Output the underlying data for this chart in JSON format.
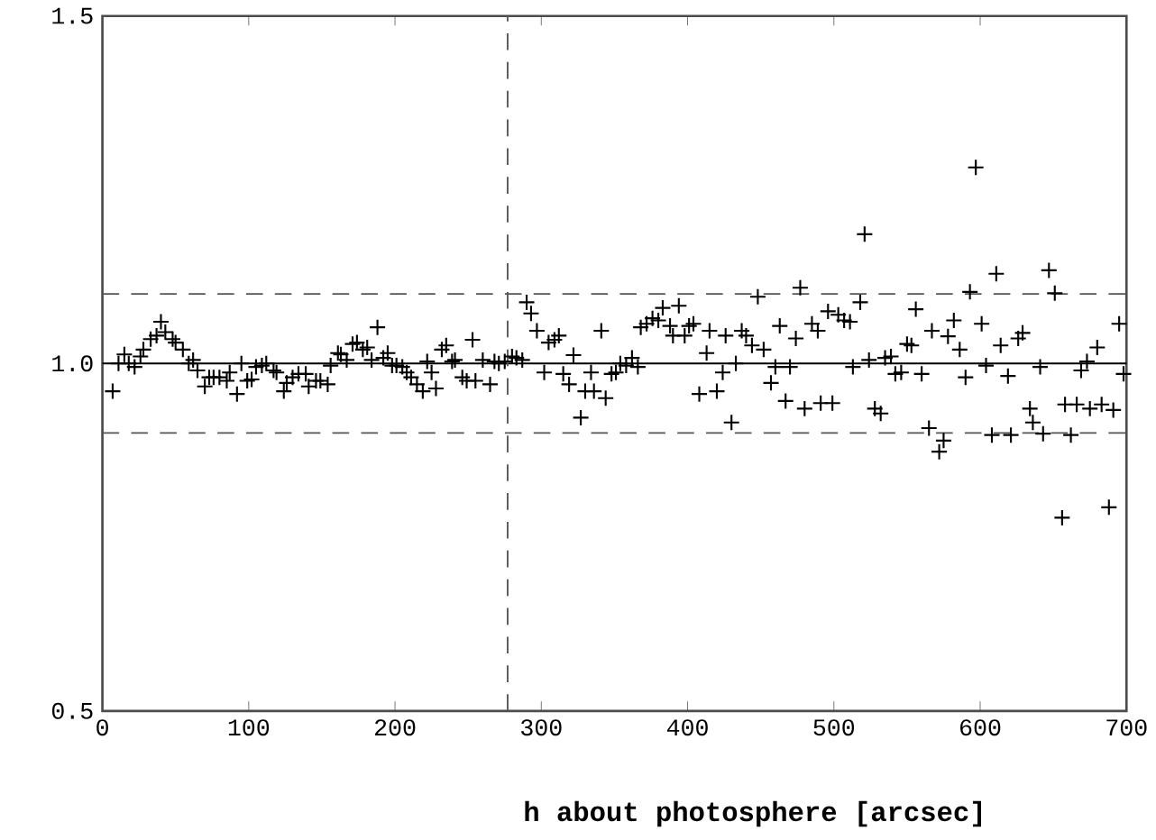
{
  "chart_data": {
    "type": "scatter",
    "xlabel": "h about photosphere [arcsec]",
    "xlim": [
      0,
      700
    ],
    "xticks": [
      0,
      100,
      200,
      300,
      400,
      500,
      600,
      700
    ],
    "ylim": [
      0.5,
      1.5
    ],
    "yticks": [
      {
        "value": 0.5,
        "label": "0.5"
      },
      {
        "value": 1,
        "label": "1.0"
      },
      {
        "value": 1.5,
        "label": "1.5"
      }
    ],
    "marker": "cross",
    "ref_lines": [
      {
        "axis": "y",
        "value": 1.1,
        "color": "#555555",
        "line_style": "dashed"
      },
      {
        "axis": "y",
        "value": 0.9,
        "color": "#555555",
        "line_style": "dashed"
      },
      {
        "axis": "y",
        "value": 1.0,
        "color": "#000000",
        "line_style": "solid"
      },
      {
        "axis": "x",
        "value": 277,
        "color": "#555555",
        "line_style": "dashed"
      }
    ],
    "series": [
      {
        "color": "#000000",
        "x": [
          7,
          11,
          15,
          18,
          22,
          26,
          28,
          33,
          37,
          40,
          43,
          48,
          50,
          55,
          59,
          62,
          65,
          70,
          73,
          76,
          80,
          85,
          87,
          92,
          95,
          99,
          102,
          105,
          109,
          112,
          117,
          119,
          124,
          126,
          130,
          134,
          139,
          141,
          146,
          149,
          154,
          156,
          161,
          163,
          167,
          171,
          174,
          178,
          181,
          184,
          188,
          192,
          195,
          198,
          201,
          205,
          208,
          211,
          215,
          219,
          222,
          225,
          228,
          232,
          235,
          239,
          241,
          246,
          249,
          253,
          255,
          260,
          265,
          268,
          271,
          275,
          280,
          283,
          287,
          290,
          293,
          297,
          302,
          305,
          309,
          312,
          315,
          319,
          322,
          327,
          330,
          334,
          336,
          341,
          344,
          348,
          351,
          354,
          358,
          362,
          366,
          368,
          372,
          376,
          380,
          383,
          388,
          390,
          394,
          398,
          401,
          404,
          408,
          413,
          415,
          420,
          424,
          426,
          430,
          433,
          437,
          440,
          444,
          448,
          452,
          457,
          460,
          463,
          467,
          470,
          474,
          477,
          480,
          485,
          489,
          491,
          496,
          499,
          503,
          507,
          511,
          513,
          518,
          521,
          524,
          528,
          532,
          535,
          539,
          542,
          546,
          550,
          553,
          556,
          560,
          565,
          567,
          572,
          575,
          578,
          582,
          586,
          590,
          593,
          597,
          601,
          604,
          608,
          611,
          614,
          619,
          621,
          626,
          629,
          634,
          636,
          641,
          643,
          647,
          651,
          656,
          658,
          662,
          666,
          669,
          673,
          675,
          680,
          683,
          688,
          691,
          695,
          698
        ],
        "values": [
          0.96,
          1.0,
          1.013,
          1.0,
          0.995,
          1.01,
          1.02,
          1.035,
          1.04,
          1.06,
          1.045,
          1.035,
          1.03,
          1.02,
          1.0,
          1.005,
          0.99,
          0.967,
          0.98,
          0.98,
          0.98,
          0.975,
          0.987,
          0.956,
          1.0,
          0.975,
          0.977,
          0.995,
          0.997,
          1.0,
          0.99,
          0.987,
          0.96,
          0.972,
          0.98,
          0.985,
          0.985,
          0.967,
          0.975,
          0.975,
          0.97,
          0.997,
          1.015,
          1.013,
          1.005,
          1.028,
          1.03,
          1.02,
          1.023,
          1.005,
          1.052,
          1.008,
          1.015,
          0.997,
          0.997,
          0.995,
          0.987,
          0.98,
          0.97,
          0.96,
          1.003,
          0.987,
          0.964,
          1.02,
          1.026,
          1.003,
          1.005,
          0.98,
          0.975,
          1.034,
          0.975,
          1.005,
          0.97,
          1.003,
          1.0,
          1.003,
          1.01,
          1.008,
          1.005,
          1.088,
          1.072,
          1.047,
          0.987,
          1.03,
          1.034,
          1.04,
          0.985,
          0.97,
          1.012,
          0.922,
          0.96,
          0.987,
          0.96,
          1.047,
          0.95,
          0.985,
          0.987,
          1.0,
          0.997,
          1.008,
          0.995,
          1.052,
          1.057,
          1.065,
          1.062,
          1.08,
          1.054,
          1.04,
          1.083,
          1.04,
          1.054,
          1.057,
          0.956,
          1.015,
          1.047,
          0.96,
          0.987,
          1.04,
          0.915,
          1.0,
          1.047,
          1.04,
          1.026,
          1.096,
          1.02,
          0.972,
          0.995,
          1.054,
          0.946,
          0.995,
          1.036,
          1.109,
          0.935,
          1.057,
          1.047,
          0.943,
          1.075,
          0.943,
          1.07,
          1.062,
          1.06,
          0.995,
          1.088,
          1.186,
          1.005,
          0.935,
          0.928,
          1.008,
          1.01,
          0.985,
          0.987,
          1.028,
          1.026,
          1.078,
          0.985,
          0.907,
          1.047,
          0.873,
          0.889,
          1.039,
          1.062,
          1.02,
          0.98,
          1.103,
          1.282,
          1.057,
          0.997,
          0.897,
          1.129,
          1.026,
          0.982,
          0.897,
          1.036,
          1.044,
          0.935,
          0.915,
          0.995,
          0.899,
          1.134,
          1.101,
          0.778,
          0.941,
          0.897,
          0.941,
          0.99,
          1.003,
          0.935,
          1.023,
          0.941,
          0.793,
          0.933,
          1.057,
          0.985
        ]
      }
    ]
  }
}
